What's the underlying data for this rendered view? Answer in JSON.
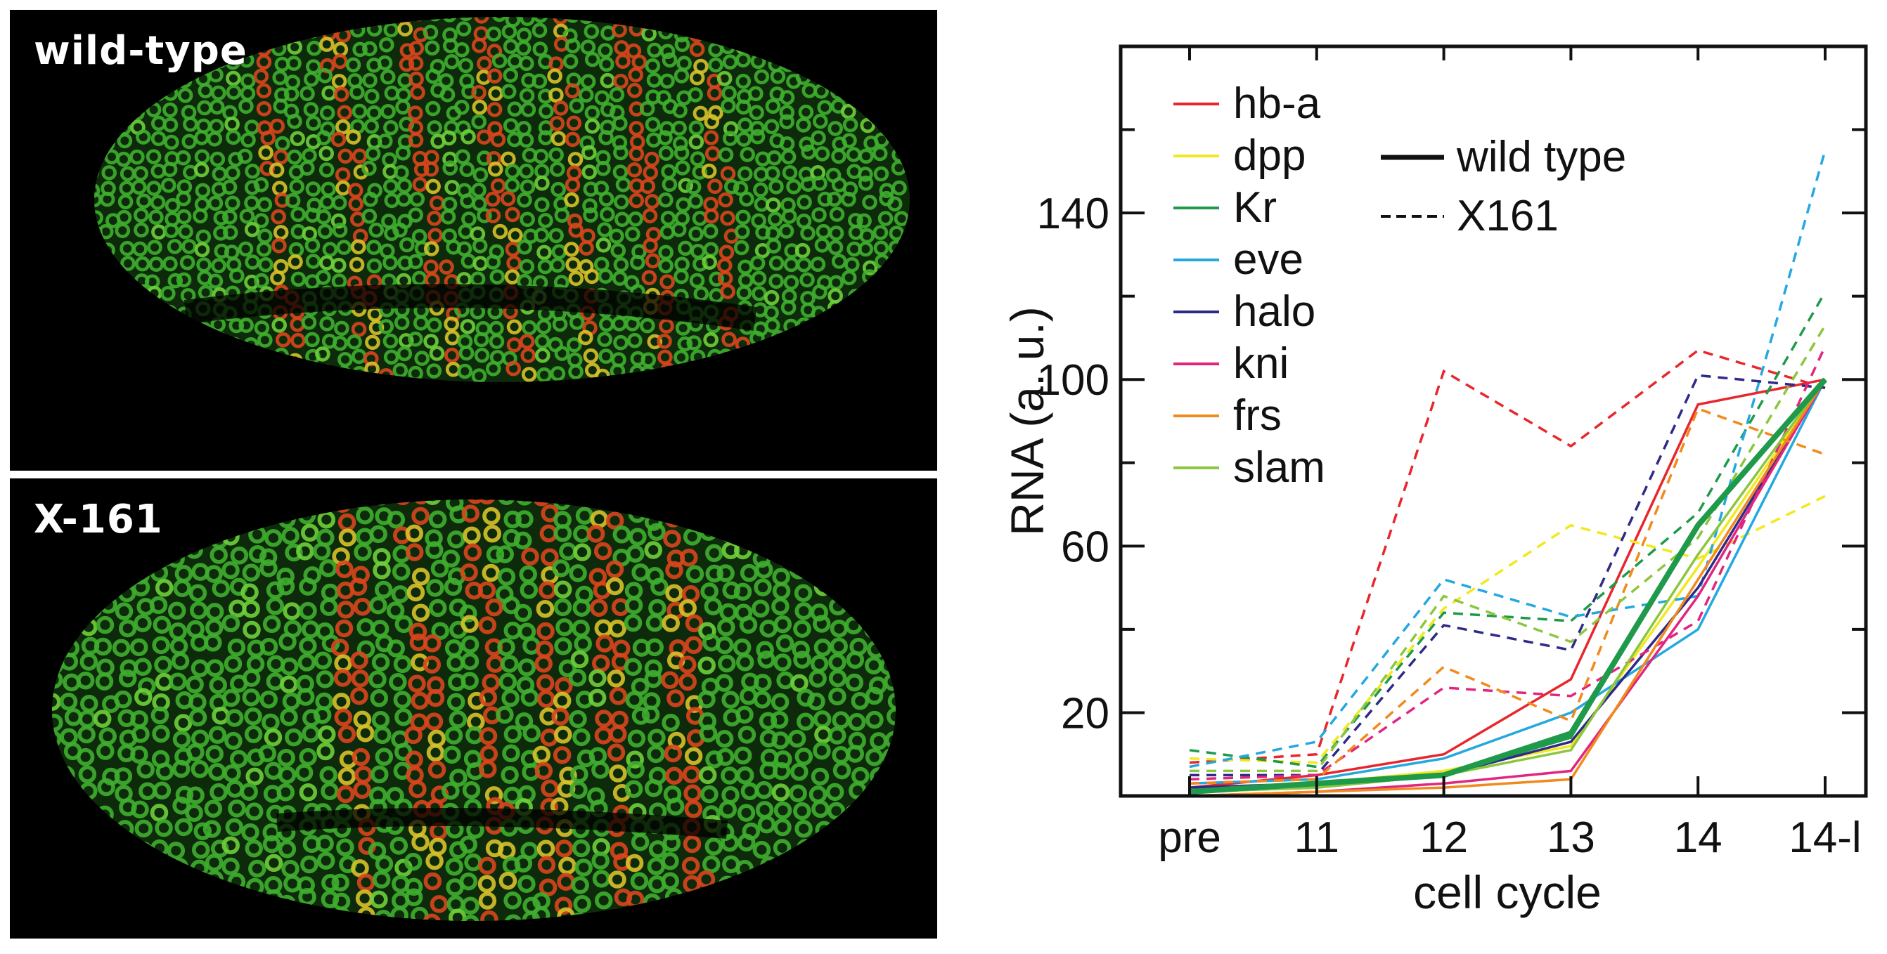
{
  "panels": {
    "top_label": "wild-type",
    "bottom_label": "X-161",
    "colors": {
      "background": "#000000",
      "cell": "#3fae2f",
      "stripe": "#d9451d",
      "highlight": "#d8c12a"
    }
  },
  "chart_data": {
    "type": "line",
    "xlabel": "cell cycle",
    "ylabel": "RNA (a. u.)",
    "categories": [
      "pre",
      "11",
      "12",
      "13",
      "14",
      "14-l"
    ],
    "ylim": [
      0,
      180
    ],
    "yticks": [
      20,
      60,
      100,
      140
    ],
    "style_legend": [
      {
        "label": "wild type",
        "dash": "solid"
      },
      {
        "label": "X161",
        "dash": "dashed"
      }
    ],
    "series": [
      {
        "name": "hb-a",
        "color": "#e8262b",
        "wild_type": [
          2,
          5,
          10,
          28,
          94,
          100
        ],
        "x161": [
          8,
          10,
          102,
          84,
          107,
          98
        ]
      },
      {
        "name": "dpp",
        "color": "#f2e81e",
        "wild_type": [
          1,
          3,
          6,
          12,
          55,
          100
        ],
        "x161": [
          9,
          8,
          45,
          65,
          57,
          72
        ]
      },
      {
        "name": "Kr",
        "color": "#1f9a4a",
        "wild_type": [
          1,
          2,
          5,
          14,
          65,
          100
        ],
        "x161": [
          11,
          7,
          44,
          42,
          68,
          121
        ]
      },
      {
        "name": "eve",
        "color": "#23a8e0",
        "wild_type": [
          3,
          4,
          9,
          20,
          40,
          100
        ],
        "x161": [
          7,
          13,
          52,
          43,
          48,
          155
        ]
      },
      {
        "name": "halo",
        "color": "#2e2a86",
        "wild_type": [
          2,
          3,
          5,
          13,
          50,
          100
        ],
        "x161": [
          5,
          5,
          41,
          35,
          101,
          98
        ]
      },
      {
        "name": "kni",
        "color": "#e0267f",
        "wild_type": [
          0,
          1,
          3,
          6,
          48,
          100
        ],
        "x161": [
          4,
          5,
          26,
          24,
          42,
          108
        ]
      },
      {
        "name": "frs",
        "color": "#f18a1c",
        "wild_type": [
          0,
          1,
          2,
          4,
          52,
          100
        ],
        "x161": [
          3,
          4,
          31,
          18,
          93,
          82
        ]
      },
      {
        "name": "slam",
        "color": "#8cc63e",
        "wild_type": [
          1,
          2,
          5,
          11,
          58,
          100
        ],
        "x161": [
          6,
          6,
          48,
          37,
          62,
          113
        ]
      }
    ],
    "average": {
      "color": "#1f9a4a",
      "wild_type": [
        1,
        3,
        5,
        15,
        65,
        100
      ]
    }
  }
}
